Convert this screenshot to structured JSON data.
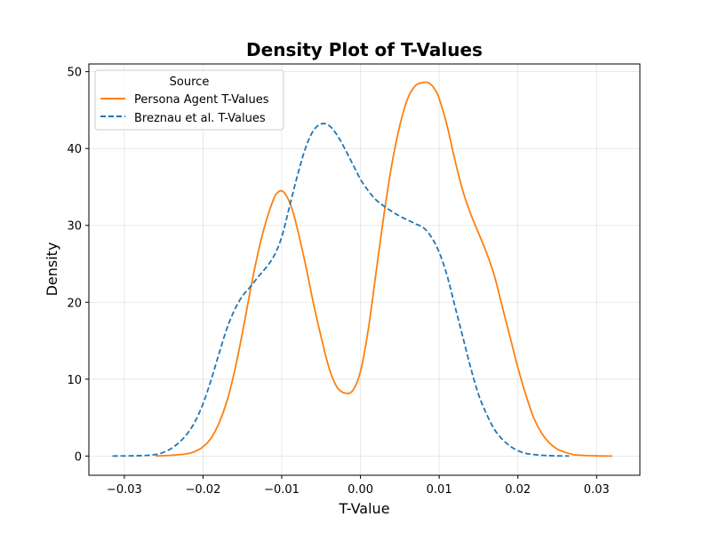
{
  "chart_data": {
    "type": "line",
    "title": "Density Plot of T-Values",
    "xlabel": "T-Value",
    "ylabel": "Density",
    "xlim": [
      -0.0345,
      0.0355
    ],
    "ylim": [
      -2.5,
      51
    ],
    "xticks": [
      -0.03,
      -0.02,
      -0.01,
      0.0,
      0.01,
      0.02,
      0.03
    ],
    "xtick_labels": [
      "−0.03",
      "−0.02",
      "−0.01",
      "0.00",
      "0.01",
      "0.02",
      "0.03"
    ],
    "yticks": [
      0,
      10,
      20,
      30,
      40,
      50
    ],
    "ytick_labels": [
      "0",
      "10",
      "20",
      "30",
      "40",
      "50"
    ],
    "grid": true,
    "legend": {
      "title": "Source",
      "placement": "top-left"
    },
    "series": [
      {
        "name": "Persona Agent T-Values",
        "color": "#ff7f0e",
        "dash": "solid",
        "x": [
          -0.026,
          -0.024,
          -0.022,
          -0.021,
          -0.02,
          -0.019,
          -0.018,
          -0.017,
          -0.016,
          -0.015,
          -0.014,
          -0.013,
          -0.012,
          -0.011,
          -0.0105,
          -0.01,
          -0.0095,
          -0.009,
          -0.0085,
          -0.008,
          -0.007,
          -0.006,
          -0.005,
          -0.004,
          -0.003,
          -0.002,
          -0.001,
          0.0,
          0.001,
          0.002,
          0.003,
          0.004,
          0.005,
          0.006,
          0.007,
          0.008,
          0.0085,
          0.009,
          0.0095,
          0.01,
          0.011,
          0.012,
          0.013,
          0.014,
          0.015,
          0.016,
          0.017,
          0.018,
          0.019,
          0.02,
          0.021,
          0.022,
          0.023,
          0.024,
          0.025,
          0.026,
          0.027,
          0.028,
          0.03,
          0.032
        ],
        "y": [
          0.0,
          0.1,
          0.3,
          0.6,
          1.2,
          2.3,
          4.2,
          7.0,
          11.0,
          16.0,
          21.5,
          26.5,
          30.5,
          33.5,
          34.3,
          34.5,
          34.0,
          33.0,
          31.5,
          29.5,
          25.0,
          20.0,
          15.5,
          11.5,
          9.0,
          8.2,
          8.5,
          11.0,
          16.5,
          24.0,
          31.5,
          38.0,
          43.0,
          46.5,
          48.2,
          48.6,
          48.6,
          48.3,
          47.6,
          46.5,
          43.0,
          38.5,
          34.5,
          31.5,
          29.0,
          26.5,
          23.5,
          19.5,
          15.5,
          11.5,
          8.0,
          5.0,
          3.0,
          1.7,
          0.9,
          0.5,
          0.2,
          0.1,
          0.02,
          0.0
        ]
      },
      {
        "name": "Breznau et al. T-Values",
        "color": "#1f77b4",
        "dash": "dashed",
        "x": [
          -0.0315,
          -0.028,
          -0.026,
          -0.025,
          -0.024,
          -0.023,
          -0.022,
          -0.021,
          -0.02,
          -0.019,
          -0.018,
          -0.017,
          -0.016,
          -0.015,
          -0.014,
          -0.013,
          -0.012,
          -0.011,
          -0.01,
          -0.009,
          -0.008,
          -0.007,
          -0.006,
          -0.005,
          -0.004,
          -0.003,
          -0.002,
          -0.001,
          0.0,
          0.001,
          0.002,
          0.003,
          0.004,
          0.005,
          0.006,
          0.007,
          0.008,
          0.009,
          0.01,
          0.011,
          0.012,
          0.013,
          0.014,
          0.015,
          0.016,
          0.017,
          0.018,
          0.019,
          0.02,
          0.021,
          0.022,
          0.023,
          0.024,
          0.025,
          0.026,
          0.0265
        ],
        "y": [
          0.0,
          0.05,
          0.2,
          0.5,
          1.0,
          1.8,
          2.9,
          4.5,
          6.8,
          9.8,
          13.2,
          16.5,
          19.0,
          20.8,
          22.0,
          23.3,
          24.5,
          26.0,
          28.5,
          32.5,
          36.5,
          40.0,
          42.3,
          43.2,
          43.0,
          41.8,
          40.0,
          38.0,
          36.0,
          34.5,
          33.3,
          32.5,
          31.8,
          31.2,
          30.7,
          30.2,
          29.7,
          28.5,
          26.5,
          23.5,
          19.5,
          15.5,
          11.5,
          8.0,
          5.5,
          3.5,
          2.2,
          1.3,
          0.7,
          0.35,
          0.2,
          0.1,
          0.05,
          0.02,
          0.01,
          0.0
        ]
      }
    ]
  }
}
